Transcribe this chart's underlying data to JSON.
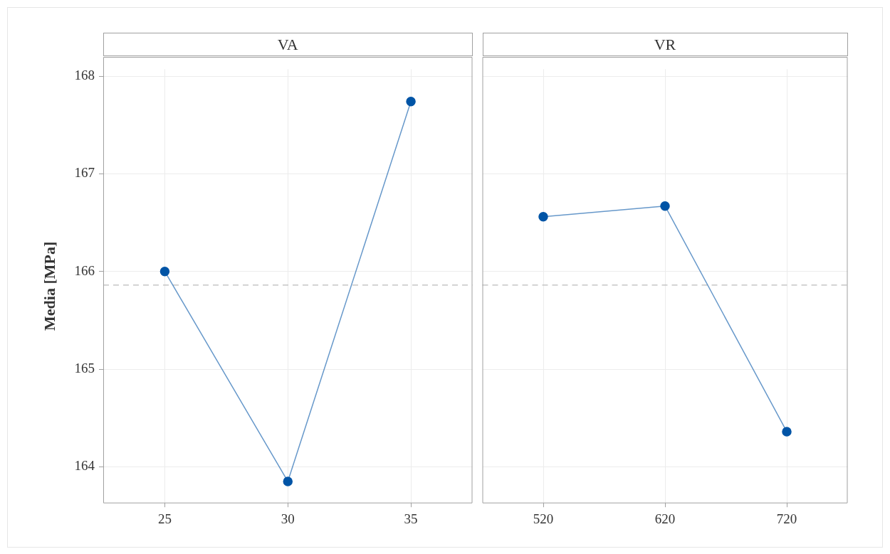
{
  "chart_data": [
    {
      "type": "line",
      "title": "VA",
      "ylabel": "Media [MPa]",
      "categories": [
        "25",
        "30",
        "35"
      ],
      "series": [
        {
          "color": "#0054a6",
          "values": [
            166.0,
            163.85,
            167.74
          ]
        }
      ],
      "ylim": [
        163.63,
        168.07
      ],
      "yticks": [
        164,
        165,
        166,
        167,
        168
      ],
      "grid": true,
      "marker": "circle",
      "line_style": "solid",
      "ref_lines": [
        {
          "axis": "y",
          "value": 165.86,
          "color": "#bbbbbb",
          "line_style": "dashed"
        }
      ]
    },
    {
      "type": "line",
      "title": "VR",
      "categories": [
        "520",
        "620",
        "720"
      ],
      "series": [
        {
          "color": "#0054a6",
          "values": [
            166.56,
            166.67,
            164.36
          ]
        }
      ],
      "ylim": [
        163.63,
        168.07
      ],
      "yticks": [
        164,
        165,
        166,
        167,
        168
      ],
      "grid": true,
      "marker": "circle",
      "line_style": "solid",
      "tick_labels": "x",
      "ref_lines": [
        {
          "axis": "y",
          "value": 165.86,
          "color": "#bbbbbb",
          "line_style": "dashed"
        }
      ]
    }
  ]
}
